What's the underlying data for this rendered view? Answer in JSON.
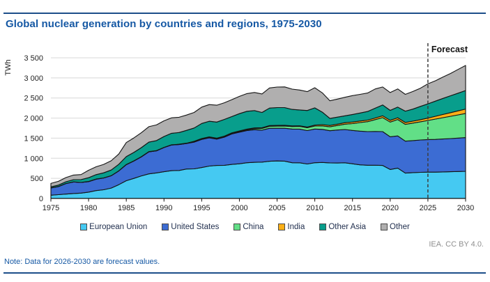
{
  "page": {
    "title": "Global nuclear generation by countries and regions, 1975-2030",
    "note": "Note: Data for 2026-2030 are forecast values.",
    "credit": "IEA. CC BY 4.0."
  },
  "chart_data": {
    "type": "area",
    "stacked": true,
    "title": "Global nuclear generation by countries and regions, 1975-2030",
    "ylabel": "TWh",
    "ylim": [
      0,
      3500
    ],
    "grid": "horizontal",
    "legend_position": "bottom",
    "forecast": {
      "label": "Forecast",
      "start_year": 2025
    },
    "y_ticks": [
      {
        "v": 0,
        "label": "0"
      },
      {
        "v": 500,
        "label": "500"
      },
      {
        "v": 1000,
        "label": "1 000"
      },
      {
        "v": 1500,
        "label": "1 500"
      },
      {
        "v": 2000,
        "label": "2 000"
      },
      {
        "v": 2500,
        "label": "2 500"
      },
      {
        "v": 3000,
        "label": "3 000"
      },
      {
        "v": 3500,
        "label": "3 500"
      }
    ],
    "x_ticks": [
      1975,
      1980,
      1985,
      1990,
      1995,
      2000,
      2005,
      2010,
      2015,
      2020,
      2025,
      2030
    ],
    "years": [
      1975,
      1976,
      1977,
      1978,
      1979,
      1980,
      1981,
      1982,
      1983,
      1984,
      1985,
      1986,
      1987,
      1988,
      1989,
      1990,
      1991,
      1992,
      1993,
      1994,
      1995,
      1996,
      1997,
      1998,
      1999,
      2000,
      2001,
      2002,
      2003,
      2004,
      2005,
      2006,
      2007,
      2008,
      2009,
      2010,
      2011,
      2012,
      2013,
      2014,
      2015,
      2016,
      2017,
      2018,
      2019,
      2020,
      2021,
      2022,
      2023,
      2024,
      2025,
      2026,
      2027,
      2028,
      2029,
      2030
    ],
    "series": [
      {
        "name": "European Union",
        "color": "#45C9F2",
        "values": [
          81,
          96,
          109,
          123,
          133,
          158,
          196,
          216,
          258,
          343,
          442,
          499,
          562,
          612,
          636,
          666,
          692,
          697,
          733,
          736,
          770,
          806,
          822,
          824,
          848,
          863,
          889,
          900,
          905,
          926,
          934,
          929,
          889,
          887,
          858,
          889,
          896,
          886,
          882,
          887,
          863,
          837,
          827,
          827,
          822,
          721,
          755,
          631,
          642,
          650,
          655,
          655,
          660,
          665,
          670,
          675
        ]
      },
      {
        "name": "United States",
        "color": "#3C6CD3",
        "values": [
          180,
          199,
          261,
          287,
          265,
          261,
          284,
          294,
          306,
          341,
          399,
          431,
          473,
          548,
          550,
          600,
          638,
          644,
          634,
          666,
          700,
          702,
          654,
          701,
          757,
          784,
          800,
          811,
          795,
          821,
          813,
          818,
          838,
          838,
          831,
          839,
          822,
          800,
          821,
          829,
          829,
          838,
          837,
          840,
          841,
          814,
          801,
          795,
          798,
          805,
          810,
          815,
          820,
          825,
          832,
          840
        ]
      },
      {
        "name": "China",
        "color": "#62DF87",
        "values": [
          0,
          0,
          0,
          0,
          0,
          0,
          0,
          0,
          0,
          0,
          0,
          0,
          0,
          0,
          0,
          0,
          0,
          1,
          2,
          14,
          13,
          14,
          14,
          14,
          15,
          17,
          17,
          25,
          42,
          50,
          53,
          55,
          62,
          68,
          70,
          74,
          87,
          97,
          112,
          133,
          171,
          213,
          248,
          295,
          349,
          366,
          408,
          418,
          435,
          452,
          475,
          505,
          530,
          555,
          578,
          600
        ]
      },
      {
        "name": "India",
        "color": "#FCAF17",
        "values": [
          3,
          3,
          3,
          3,
          3,
          3,
          3,
          2,
          3,
          4,
          5,
          5,
          5,
          6,
          5,
          6,
          6,
          7,
          6,
          6,
          8,
          9,
          10,
          12,
          13,
          16,
          19,
          19,
          18,
          17,
          17,
          19,
          17,
          15,
          19,
          23,
          32,
          33,
          33,
          36,
          37,
          38,
          37,
          39,
          45,
          43,
          44,
          46,
          48,
          53,
          60,
          70,
          80,
          90,
          100,
          110
        ]
      },
      {
        "name": "Other Asia",
        "color": "#089E8C",
        "values": [
          25,
          34,
          42,
          55,
          68,
          95,
          110,
          125,
          140,
          162,
          195,
          210,
          225,
          235,
          248,
          270,
          285,
          292,
          320,
          332,
          375,
          390,
          400,
          415,
          405,
          430,
          445,
          432,
          380,
          435,
          445,
          440,
          410,
          395,
          410,
          430,
          310,
          175,
          175,
          172,
          190,
          200,
          215,
          245,
          270,
          247,
          265,
          282,
          300,
          330,
          355,
          378,
          400,
          420,
          440,
          460
        ]
      },
      {
        "name": "Other",
        "color": "#B0AFAF",
        "values": [
          85,
          95,
          105,
          115,
          125,
          185,
          195,
          210,
          230,
          255,
          350,
          360,
          370,
          385,
          390,
          390,
          385,
          380,
          380,
          385,
          407,
          415,
          420,
          415,
          420,
          430,
          440,
          450,
          460,
          500,
          510,
          515,
          505,
          495,
          470,
          500,
          480,
          440,
          450,
          460,
          470,
          465,
          460,
          478,
          447,
          444,
          452,
          419,
          439,
          453,
          497,
          506,
          532,
          555,
          590,
          625
        ]
      }
    ]
  }
}
